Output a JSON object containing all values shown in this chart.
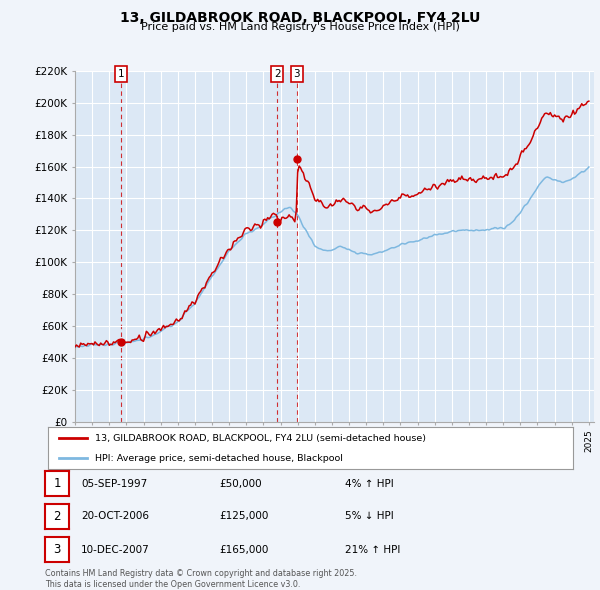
{
  "title": "13, GILDABROOK ROAD, BLACKPOOL, FY4 2LU",
  "subtitle": "Price paid vs. HM Land Registry's House Price Index (HPI)",
  "ylim": [
    0,
    220000
  ],
  "yticks": [
    0,
    20000,
    40000,
    60000,
    80000,
    100000,
    120000,
    140000,
    160000,
    180000,
    200000,
    220000
  ],
  "ytick_labels": [
    "£0",
    "£20K",
    "£40K",
    "£60K",
    "£80K",
    "£100K",
    "£120K",
    "£140K",
    "£160K",
    "£180K",
    "£200K",
    "£220K"
  ],
  "purchase_dates": [
    1997.68,
    2006.8,
    2007.94
  ],
  "purchase_prices": [
    50000,
    125000,
    165000
  ],
  "hpi_color": "#7eb8e0",
  "price_color": "#cc0000",
  "legend_label_price": "13, GILDABROOK ROAD, BLACKPOOL, FY4 2LU (semi-detached house)",
  "legend_label_hpi": "HPI: Average price, semi-detached house, Blackpool",
  "table_rows": [
    {
      "num": "1",
      "date": "05-SEP-1997",
      "price": "£50,000",
      "change": "4% ↑ HPI"
    },
    {
      "num": "2",
      "date": "20-OCT-2006",
      "price": "£125,000",
      "change": "5% ↓ HPI"
    },
    {
      "num": "3",
      "date": "10-DEC-2007",
      "price": "£165,000",
      "change": "21% ↑ HPI"
    }
  ],
  "footer": "Contains HM Land Registry data © Crown copyright and database right 2025.\nThis data is licensed under the Open Government Licence v3.0.",
  "background_color": "#f0f4fa",
  "plot_bg_color": "#dce8f5",
  "grid_color": "#ffffff"
}
